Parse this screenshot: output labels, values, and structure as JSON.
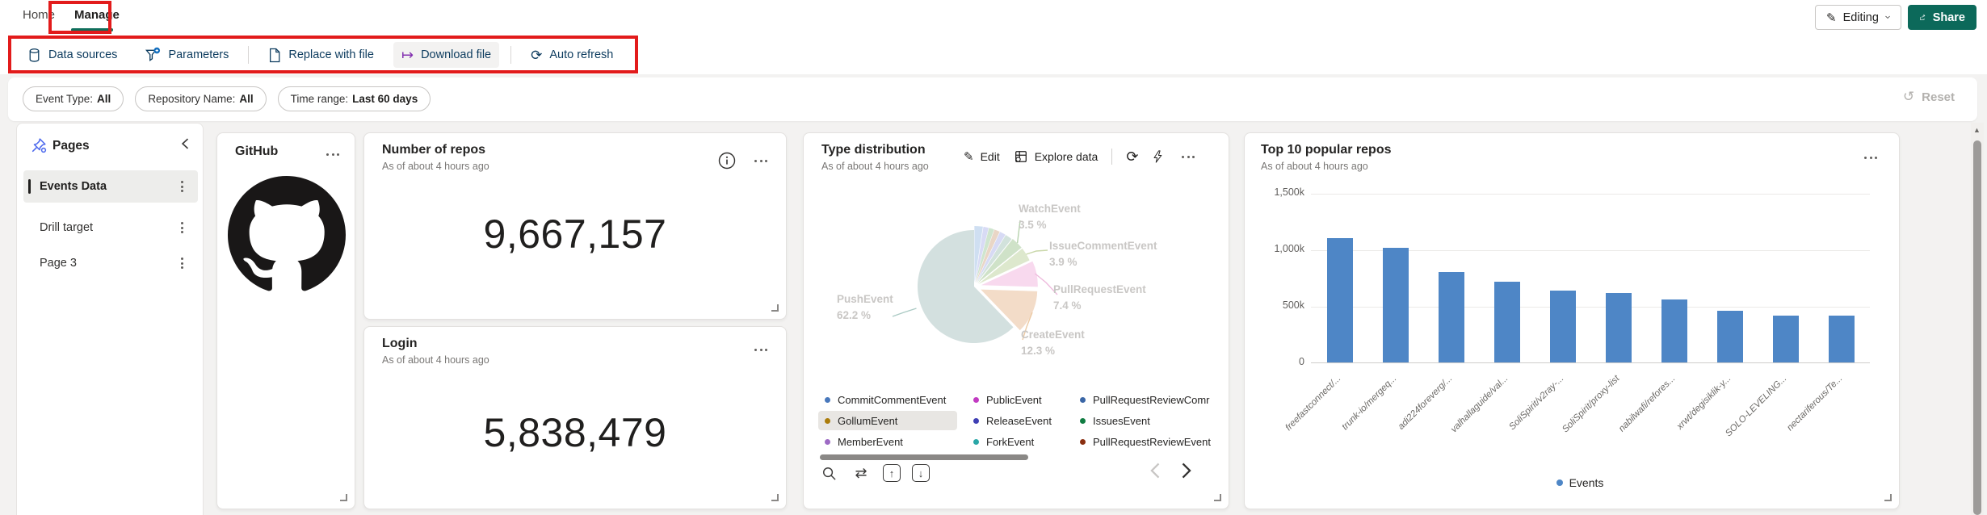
{
  "header": {
    "tabs": [
      {
        "label": "Home",
        "active": false
      },
      {
        "label": "Manage",
        "active": true
      }
    ],
    "editing_label": "Editing",
    "share_label": "Share"
  },
  "toolbar": {
    "items": [
      {
        "label": "Data sources",
        "icon": "database-icon"
      },
      {
        "label": "Parameters",
        "icon": "funnel-add-icon"
      },
      {
        "label": "Replace with file",
        "icon": "document-icon"
      },
      {
        "label": "Download file",
        "icon": "download-file-icon"
      },
      {
        "label": "Auto refresh",
        "icon": "auto-refresh-icon"
      }
    ]
  },
  "filter_bar": {
    "pills": [
      {
        "label": "Event Type:",
        "value": "All"
      },
      {
        "label": "Repository Name:",
        "value": "All"
      },
      {
        "label": "Time range:",
        "value": "Last 60 days"
      }
    ],
    "reset_label": "Reset"
  },
  "sidebar": {
    "title": "Pages",
    "items": [
      {
        "label": "Events Data",
        "selected": true
      },
      {
        "label": "Drill target",
        "selected": false
      },
      {
        "label": "Page 3",
        "selected": false
      }
    ]
  },
  "cards": {
    "github": {
      "title": "GitHub"
    },
    "number_of_repos": {
      "title": "Number of repos",
      "subtitle": "As of about 4 hours ago",
      "value": "9,667,157"
    },
    "login": {
      "title": "Login",
      "subtitle": "As of about 4 hours ago",
      "value": "5,838,479"
    },
    "type_distribution": {
      "title": "Type distribution",
      "subtitle": "As of about 4 hours ago",
      "toolbar": {
        "edit": "Edit",
        "explore": "Explore data"
      }
    },
    "top_repos": {
      "title": "Top 10 popular repos",
      "subtitle": "As of about 4 hours ago"
    }
  },
  "chart_data": [
    {
      "type": "pie",
      "title": "Type distribution",
      "unit": "percent",
      "labeled_slices": [
        {
          "label": "PushEvent",
          "value": 62.2,
          "pct_text": "62.2 %"
        },
        {
          "label": "CreateEvent",
          "value": 12.3,
          "pct_text": "12.3 %"
        },
        {
          "label": "PullRequestEvent",
          "value": 7.4,
          "pct_text": "7.4 %"
        },
        {
          "label": "IssueCommentEvent",
          "value": 3.9,
          "pct_text": "3.9 %"
        },
        {
          "label": "WatchEvent",
          "value": 3.5,
          "pct_text": "3.5 %"
        },
        {
          "label": "Other small unlabeled slices",
          "value": 10.7,
          "pct_text": ""
        }
      ],
      "render_slices": [
        {
          "pct": 2.4,
          "color": "#cfdff2",
          "explode": 5
        },
        {
          "pct": 1.5,
          "color": "#d8dbf5",
          "explode": 5
        },
        {
          "pct": 1.5,
          "color": "#cfe5cf",
          "explode": 5
        },
        {
          "pct": 1.6,
          "color": "#e9d6c6",
          "explode": 5
        },
        {
          "pct": 1.7,
          "color": "#d7daf4",
          "explode": 5
        },
        {
          "pct": 2.0,
          "color": "#d2e2dc",
          "explode": 5
        },
        {
          "pct": 3.5,
          "color": "#cfe2c8",
          "explode": 6
        },
        {
          "pct": 3.9,
          "color": "#dde8cd",
          "explode": 6
        },
        {
          "pct": 7.4,
          "color": "#f8d9ee",
          "explode": 9
        },
        {
          "pct": 12.3,
          "color": "#f3dcc8",
          "explode": 9
        },
        {
          "pct": 62.2,
          "color": "#d3e0df",
          "explode": 0
        }
      ],
      "legend_position": "bottom",
      "legend": [
        {
          "label": "CommitCommentEvent",
          "color": "#4878bc",
          "col": 0,
          "row": 0,
          "highlighted": false
        },
        {
          "label": "GollumEvent",
          "color": "#ab7c0a",
          "col": 0,
          "row": 1,
          "highlighted": true
        },
        {
          "label": "MemberEvent",
          "color": "#9d6ac4",
          "col": 0,
          "row": 2,
          "highlighted": false
        },
        {
          "label": "PublicEvent",
          "color": "#c23bc2",
          "col": 1,
          "row": 0,
          "highlighted": false
        },
        {
          "label": "ReleaseEvent",
          "color": "#3f3fb4",
          "col": 1,
          "row": 1,
          "highlighted": false
        },
        {
          "label": "ForkEvent",
          "color": "#2aa7a7",
          "col": 1,
          "row": 2,
          "highlighted": false
        },
        {
          "label": "PullRequestReviewComr",
          "color": "#3a66a6",
          "col": 2,
          "row": 0,
          "highlighted": false
        },
        {
          "label": "IssuesEvent",
          "color": "#107c41",
          "col": 2,
          "row": 1,
          "highlighted": false
        },
        {
          "label": "PullRequestReviewEvent",
          "color": "#8a2f10",
          "col": 2,
          "row": 2,
          "highlighted": false
        }
      ]
    },
    {
      "type": "bar",
      "title": "Top 10 popular repos",
      "series_name": "Events",
      "categories": [
        "freefastconnect/...",
        "trunk-io/mergeq...",
        "adi224foreverg/...",
        "valhallaguide/val...",
        "SoliSpirit/v2ray-...",
        "SoliSpirit/proxy-list",
        "nabilwafi/refores...",
        "xrwt/degisiklik-y...",
        "SOLO-LEVELING...",
        "nectariferous/Te..."
      ],
      "values": [
        1100000,
        1015000,
        800000,
        712000,
        633000,
        612000,
        554000,
        460000,
        417000,
        417000
      ],
      "ylim": [
        0,
        1500000
      ],
      "yticks": [
        {
          "label": "1,500k",
          "value": 1500000
        },
        {
          "label": "1,000k",
          "value": 1000000
        },
        {
          "label": "500k",
          "value": 500000
        },
        {
          "label": "0",
          "value": 0
        }
      ],
      "grid": true,
      "legend_position": "bottom",
      "bar_color": "#4e86c6"
    }
  ],
  "colors": {
    "annotation_red": "#e21b1b",
    "tab_underline_teal": "#0f6e5b",
    "share_button_green": "#0c695a",
    "toolbar_text_navy": "#0c3b5e",
    "download_icon_purple": "#8331b0",
    "pages_icon_blue": "#4f6bed",
    "bar_blue": "#4e86c6",
    "selected_page_indicator": "#201f1e"
  }
}
